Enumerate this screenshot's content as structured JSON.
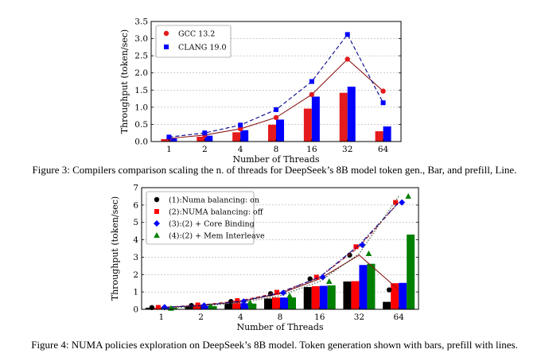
{
  "chart_data": [
    {
      "type": "bar+line",
      "caption": "Figure 3: Compilers comparison scaling the n. of threads for DeepSeek’s 8B model token gen., Bar, and prefill, Line.",
      "xlabel": "Number of Threads",
      "ylabel": "Throughput (token/sec)",
      "categories": [
        "1",
        "2",
        "4",
        "8",
        "16",
        "32",
        "64"
      ],
      "ylim": [
        0,
        3.5
      ],
      "yticks": [
        "0.0",
        "0.5",
        "1.0",
        "1.5",
        "2.0",
        "2.5",
        "3.0",
        "3.5"
      ],
      "legend_position": "top-left",
      "series": [
        {
          "name": "GCC 13.2",
          "color": "#e41a1c",
          "marker": "circle",
          "line_style": "solid",
          "line_color": "#8b1a1a",
          "bars": [
            0.07,
            0.14,
            0.27,
            0.49,
            0.96,
            1.42,
            0.3
          ],
          "line": [
            0.09,
            0.19,
            0.37,
            0.7,
            1.37,
            2.4,
            1.47
          ]
        },
        {
          "name": "CLANG 19.0",
          "color": "#0000ff",
          "marker": "square",
          "line_style": "dashed",
          "line_color": "#00008b",
          "bars": [
            0.09,
            0.17,
            0.33,
            0.64,
            1.31,
            1.6,
            0.44
          ],
          "line": [
            0.13,
            0.25,
            0.48,
            0.93,
            1.75,
            3.12,
            1.13
          ]
        }
      ]
    },
    {
      "type": "bar+line",
      "caption": "Figure 4: NUMA policies exploration on DeepSeek’s 8B model. Token generation shown with bars, prefill with lines.",
      "xlabel": "Number of Threads",
      "ylabel": "Throughput (token/sec)",
      "categories": [
        "1",
        "2",
        "4",
        "8",
        "16",
        "32",
        "64"
      ],
      "ylim": [
        0,
        7
      ],
      "yticks": [
        "0",
        "1",
        "2",
        "3",
        "4",
        "5",
        "6",
        "7"
      ],
      "legend_position": "top-left",
      "series": [
        {
          "name": "(1):Numa balancing: on",
          "color": "#000000",
          "marker": "circle",
          "line_style": "solid",
          "line_color": "#8b1a1a",
          "bars": [
            0.09,
            0.18,
            0.33,
            0.62,
            1.28,
            1.6,
            0.43
          ],
          "line": [
            0.1,
            0.22,
            0.45,
            0.9,
            1.75,
            3.12,
            1.12
          ]
        },
        {
          "name": "(2):NUMA balancing: off",
          "color": "#ff0000",
          "marker": "square",
          "line_style": "dashed",
          "line_color": "#b22222",
          "bars": [
            0.09,
            0.19,
            0.35,
            0.68,
            1.33,
            1.62,
            1.5
          ],
          "line": [
            0.11,
            0.25,
            0.5,
            0.98,
            1.85,
            3.6,
            6.15
          ]
        },
        {
          "name": "(3):(2) + Core Binding",
          "color": "#0000ff",
          "marker": "diamond",
          "line_style": "dashdot",
          "line_color": "#00008b",
          "bars": [
            0.1,
            0.19,
            0.35,
            0.68,
            1.35,
            2.55,
            1.52
          ],
          "line": [
            0.12,
            0.22,
            0.45,
            0.95,
            1.85,
            3.7,
            6.15
          ]
        },
        {
          "name": "(4):(2) + Mem Interleave",
          "color": "#008000",
          "marker": "triangle",
          "line_style": "dotted",
          "line_color": "#2f4f2f",
          "bars": [
            0.09,
            0.18,
            0.33,
            0.68,
            1.38,
            2.62,
            4.3
          ],
          "line": [
            0.06,
            0.18,
            0.38,
            0.78,
            1.6,
            3.2,
            6.5
          ]
        }
      ]
    }
  ]
}
